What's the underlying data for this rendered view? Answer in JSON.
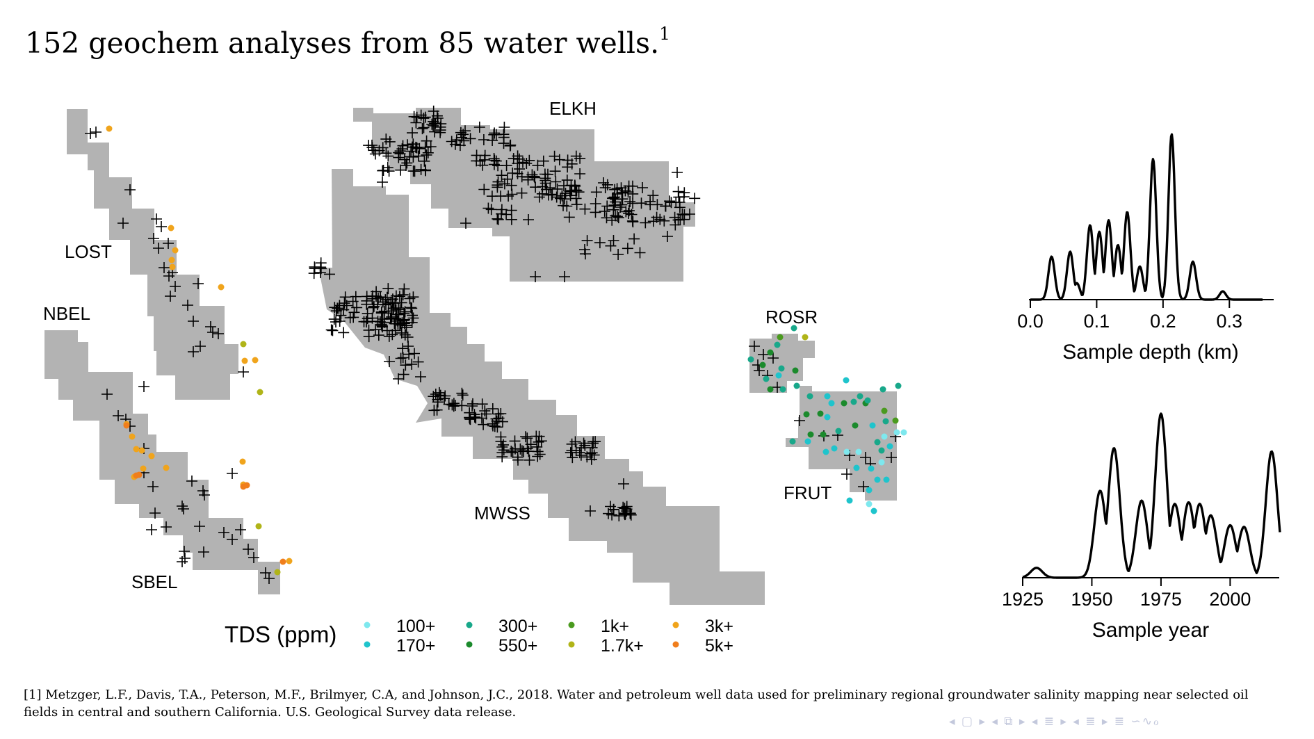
{
  "title": "152 geochem analyses from 85 water wells.",
  "title_footnote_mark": "1",
  "footnote": "[1] Metzger, L.F., Davis, T.A., Peterson, M.F., Brilmyer, C.A, and Johnson, J.C., 2018.  Water and petroleum well data used for preliminary regional groundwater salinity mapping near selected oil fields in central and southern California.  U.S. Geological Survey data release.",
  "nav_symbols": "◂ ▢ ▸ ◂ ⧉ ▸ ◂ ≣ ▸ ◂ ≣ ▸   ≣   ∽∿ℴ",
  "colors": {
    "field_fill": "#b3b3b3",
    "marker": "#000000",
    "tds_100": "#7ee8ee",
    "tds_170": "#1fc4cc",
    "tds_300": "#18a88a",
    "tds_550": "#1b8a2c",
    "tds_1k": "#4a9a1e",
    "tds_1_7k": "#b0b418",
    "tds_3k": "#f0a41c",
    "tds_5k": "#f07e1c"
  },
  "map": {
    "field_labels": [
      "LOST",
      "NBEL",
      "SBEL",
      "ELKH",
      "MWSS",
      "ROSR",
      "FRUT"
    ],
    "legend_title": "TDS (ppm)",
    "legend_items": [
      {
        "label": "100+",
        "color_key": "tds_100"
      },
      {
        "label": "170+",
        "color_key": "tds_170"
      },
      {
        "label": "300+",
        "color_key": "tds_300"
      },
      {
        "label": "550+",
        "color_key": "tds_550"
      },
      {
        "label": "1k+",
        "color_key": "tds_1k"
      },
      {
        "label": "1.7k+",
        "color_key": "tds_1_7k"
      },
      {
        "label": "3k+",
        "color_key": "tds_3k"
      },
      {
        "label": "5k+",
        "color_key": "tds_5k"
      }
    ]
  },
  "chart_data": [
    {
      "type": "area",
      "subtype": "density",
      "xlabel": "Sample depth (km)",
      "ylabel": "",
      "x_ticks": [
        "0.0",
        "0.1",
        "0.2",
        "0.3"
      ],
      "xlim": [
        0.0,
        0.35
      ],
      "modes": [
        {
          "x": 0.032,
          "h": 0.26
        },
        {
          "x": 0.06,
          "h": 0.29
        },
        {
          "x": 0.07,
          "h": 0.1
        },
        {
          "x": 0.09,
          "h": 0.45
        },
        {
          "x": 0.104,
          "h": 0.41
        },
        {
          "x": 0.118,
          "h": 0.48
        },
        {
          "x": 0.132,
          "h": 0.33
        },
        {
          "x": 0.146,
          "h": 0.53
        },
        {
          "x": 0.165,
          "h": 0.2
        },
        {
          "x": 0.185,
          "h": 0.85
        },
        {
          "x": 0.213,
          "h": 1.0
        },
        {
          "x": 0.245,
          "h": 0.23
        },
        {
          "x": 0.29,
          "h": 0.05
        }
      ]
    },
    {
      "type": "area",
      "subtype": "density",
      "xlabel": "Sample year",
      "ylabel": "",
      "x_ticks": [
        "1925",
        "1950",
        "1975",
        "2000"
      ],
      "xlim": [
        1925,
        2018
      ],
      "modes": [
        {
          "x": 1930,
          "h": 0.06
        },
        {
          "x": 1953,
          "h": 0.53
        },
        {
          "x": 1958,
          "h": 0.79
        },
        {
          "x": 1968,
          "h": 0.47
        },
        {
          "x": 1975,
          "h": 1.0
        },
        {
          "x": 1980,
          "h": 0.45
        },
        {
          "x": 1985,
          "h": 0.46
        },
        {
          "x": 1989,
          "h": 0.45
        },
        {
          "x": 1993,
          "h": 0.38
        },
        {
          "x": 2000,
          "h": 0.32
        },
        {
          "x": 2005,
          "h": 0.31
        },
        {
          "x": 2015,
          "h": 0.77
        }
      ]
    }
  ]
}
